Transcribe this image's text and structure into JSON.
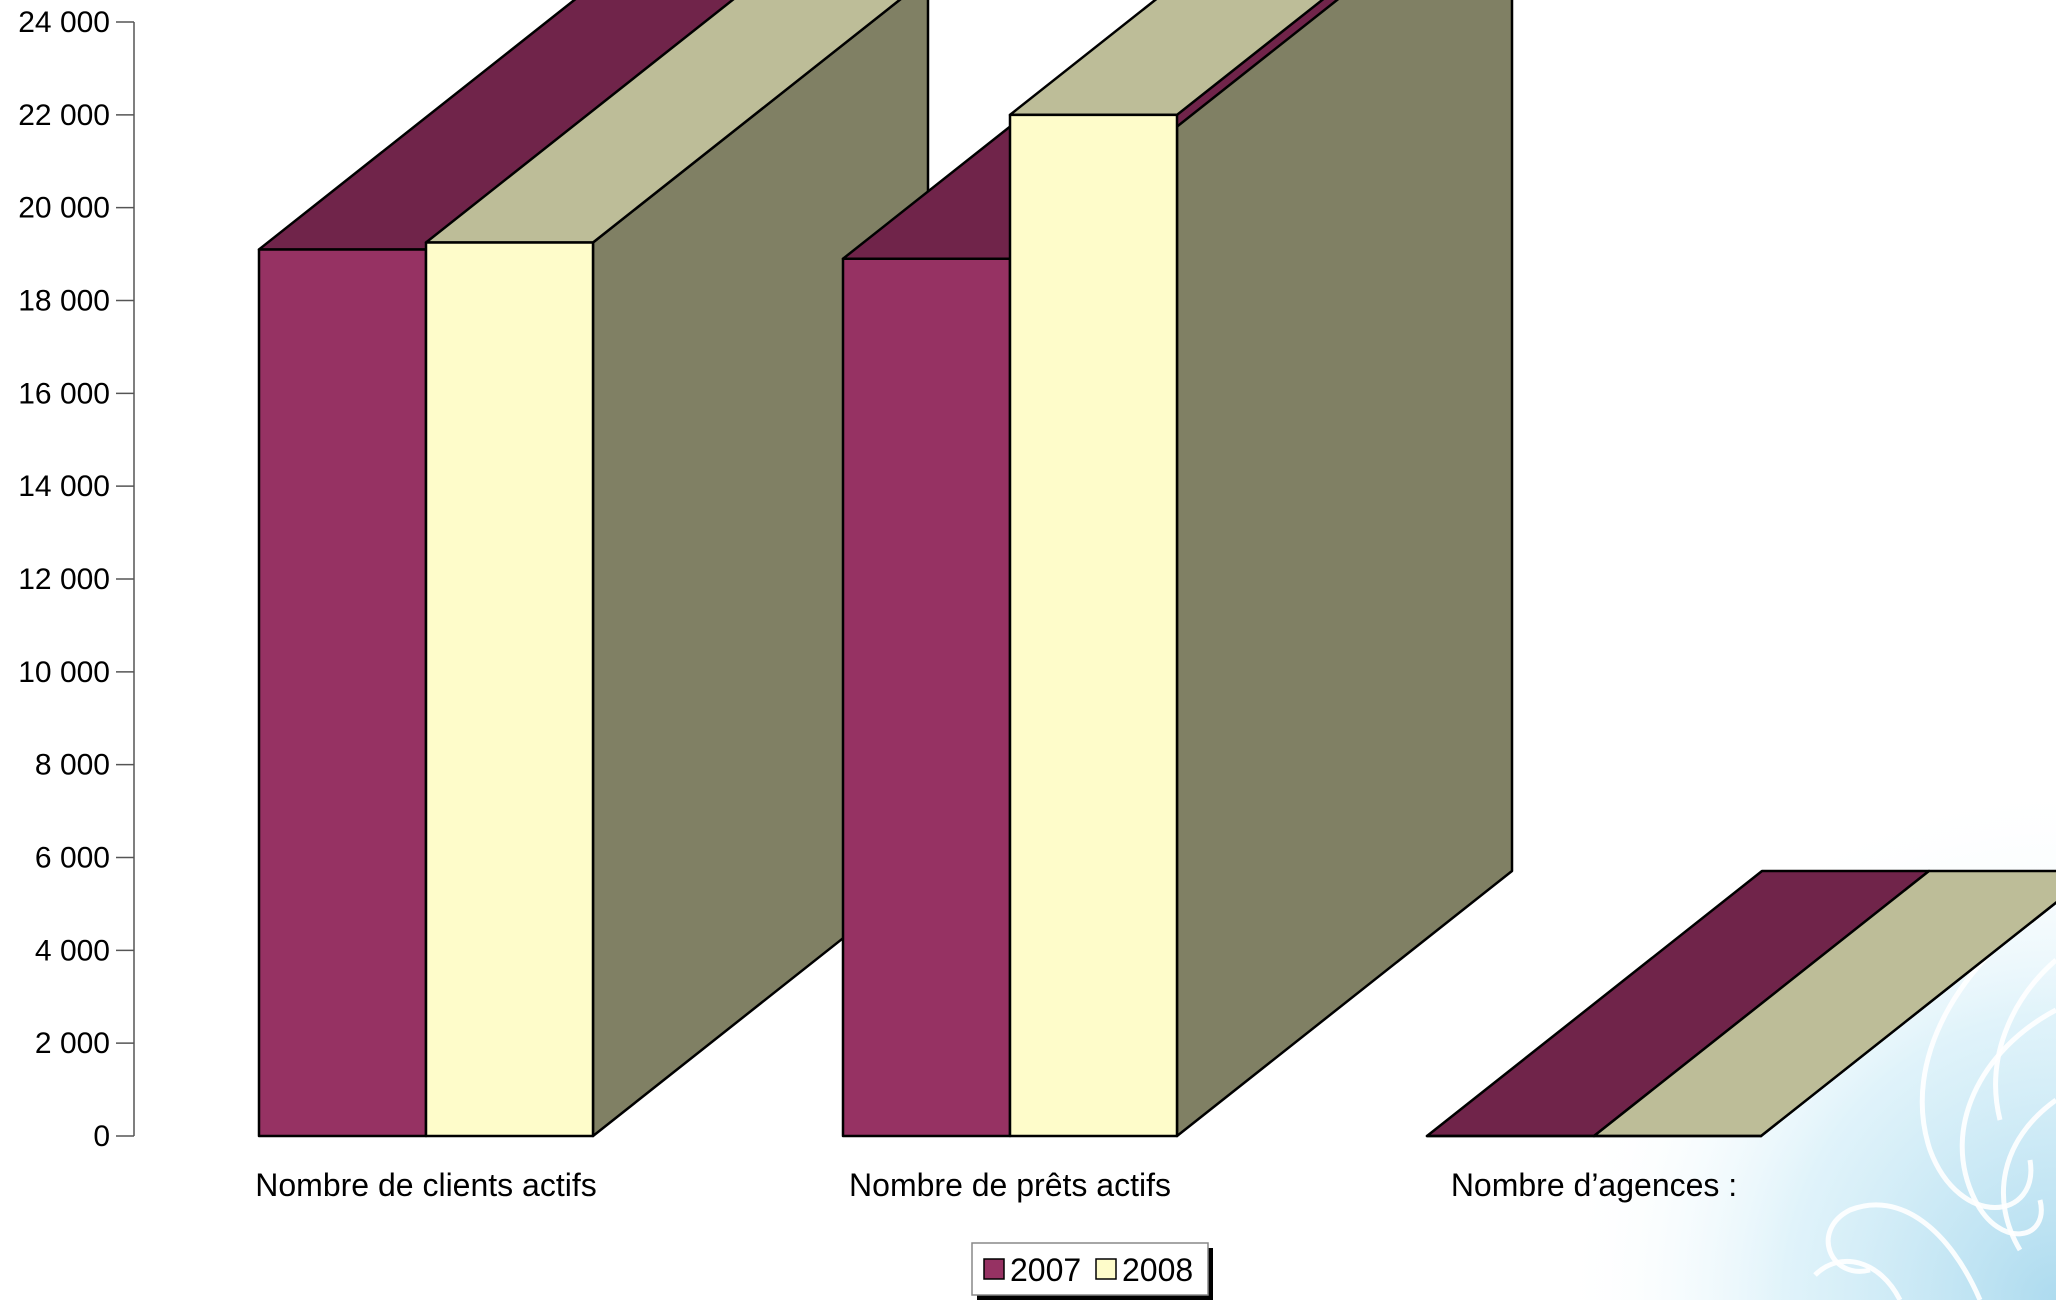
{
  "chart_data": {
    "type": "bar",
    "three_d": true,
    "categories": [
      "Nombre de clients actifs",
      "Nombre de prêts actifs",
      "Nombre d’agences :"
    ],
    "series": [
      {
        "name": "2007",
        "values": [
          19100,
          18900,
          0
        ]
      },
      {
        "name": "2008",
        "values": [
          19250,
          22000,
          0
        ]
      }
    ],
    "ylim": [
      0,
      24000
    ],
    "yticks": [
      0,
      2000,
      4000,
      6000,
      8000,
      10000,
      12000,
      14000,
      16000,
      18000,
      20000,
      22000,
      24000
    ],
    "ytick_labels": [
      "0",
      "2 000",
      "4 000",
      "6 000",
      "8 000",
      "10 000",
      "12 000",
      "14 000",
      "16 000",
      "18 000",
      "20 000",
      "22 000",
      "24 000"
    ],
    "title": "",
    "xlabel": "",
    "ylabel": "",
    "grid": false,
    "legend_position": "bottom-center"
  },
  "colors": {
    "series_2007": {
      "front": "#963263",
      "top": "#70244A"
    },
    "series_2008": {
      "front": "#FEFCCA",
      "top": "#BDBD98"
    },
    "side": "#808064",
    "outline": "#000000",
    "background_swirl": "#BFE3F1"
  }
}
